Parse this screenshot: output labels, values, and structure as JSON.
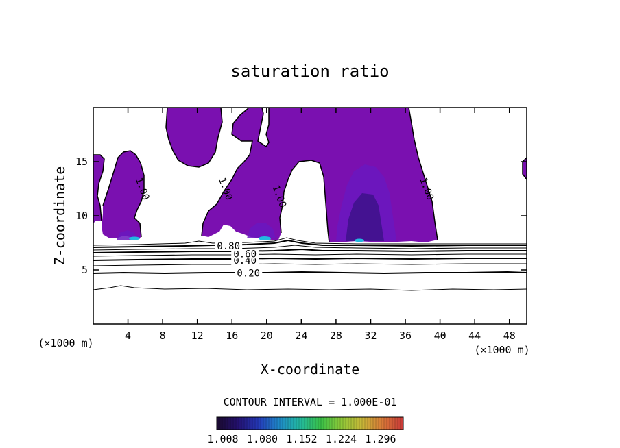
{
  "chart_data": {
    "type": "contour",
    "title": "saturation ratio",
    "xlabel": "X-coordinate",
    "ylabel": "Z-coordinate",
    "x_unit_left": "(×1000 m)",
    "x_unit_right": "(×1000 m)",
    "xlim": [
      0,
      50
    ],
    "ylim": [
      0,
      20
    ],
    "x_ticks": [
      4,
      8,
      12,
      16,
      20,
      24,
      28,
      32,
      36,
      40,
      44,
      48
    ],
    "y_ticks": [
      5,
      10,
      15
    ],
    "contour_interval_text": "CONTOUR INTERVAL = 1.000E-01",
    "contour_labels": [
      {
        "text": "0.20",
        "x": 17.9,
        "z": 4.7
      },
      {
        "text": "0.40",
        "x": 17.5,
        "z": 5.9
      },
      {
        "text": "0.60",
        "x": 17.5,
        "z": 6.5
      },
      {
        "text": "0.80",
        "x": 15.6,
        "z": 7.2
      },
      {
        "text": "1.00",
        "x": 5.7,
        "z": 12.5
      },
      {
        "text": "1.00",
        "x": 15.3,
        "z": 12.5
      },
      {
        "text": "1.00",
        "x": 21.5,
        "z": 11.8
      },
      {
        "text": "1.00",
        "x": 38.5,
        "z": 12.5
      }
    ],
    "colorbar": {
      "labels": [
        "1.008",
        "1.080",
        "1.152",
        "1.224",
        "1.296"
      ],
      "colors": [
        "#1a0a2e",
        "#24106e",
        "#2438b8",
        "#1e88c8",
        "#22b8a0",
        "#38c048",
        "#8ec838",
        "#c8b838",
        "#d87838",
        "#c83838"
      ]
    },
    "fill_color": "#7a10b0",
    "enhanced_color": "#6a18c0",
    "peak_color": "#22b8e0"
  }
}
